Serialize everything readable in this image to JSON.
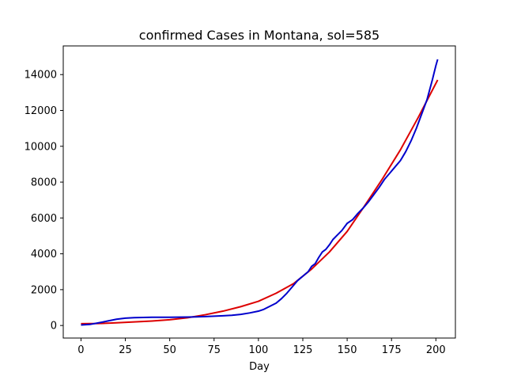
{
  "chart_data": {
    "type": "line",
    "title": "confirmed Cases in Montana, sol=585",
    "xlabel": "Day",
    "ylabel": "",
    "xlim": [
      -10,
      211
    ],
    "ylim": [
      -700,
      15600
    ],
    "x_ticks": [
      "0",
      "25",
      "50",
      "75",
      "100",
      "125",
      "150",
      "175",
      "200"
    ],
    "x_tick_values": [
      0,
      25,
      50,
      75,
      100,
      125,
      150,
      175,
      200
    ],
    "y_ticks": [
      "0",
      "2000",
      "4000",
      "6000",
      "8000",
      "10000",
      "12000",
      "14000"
    ],
    "y_tick_values": [
      0,
      2000,
      4000,
      6000,
      8000,
      10000,
      12000,
      14000
    ],
    "grid": false,
    "series": [
      {
        "color": "#0000cc",
        "points": [
          [
            0,
            30
          ],
          [
            5,
            60
          ],
          [
            10,
            150
          ],
          [
            15,
            250
          ],
          [
            20,
            350
          ],
          [
            25,
            410
          ],
          [
            30,
            440
          ],
          [
            35,
            450
          ],
          [
            40,
            460
          ],
          [
            45,
            460
          ],
          [
            50,
            460
          ],
          [
            55,
            465
          ],
          [
            60,
            470
          ],
          [
            65,
            480
          ],
          [
            70,
            500
          ],
          [
            75,
            520
          ],
          [
            80,
            540
          ],
          [
            85,
            570
          ],
          [
            90,
            620
          ],
          [
            95,
            700
          ],
          [
            100,
            800
          ],
          [
            103,
            900
          ],
          [
            106,
            1050
          ],
          [
            110,
            1250
          ],
          [
            113,
            1500
          ],
          [
            116,
            1800
          ],
          [
            119,
            2150
          ],
          [
            122,
            2500
          ],
          [
            125,
            2750
          ],
          [
            128,
            3000
          ],
          [
            130,
            3300
          ],
          [
            132,
            3450
          ],
          [
            134,
            3800
          ],
          [
            136,
            4100
          ],
          [
            138,
            4250
          ],
          [
            140,
            4500
          ],
          [
            142,
            4800
          ],
          [
            144,
            5000
          ],
          [
            147,
            5300
          ],
          [
            150,
            5700
          ],
          [
            153,
            5900
          ],
          [
            156,
            6250
          ],
          [
            159,
            6550
          ],
          [
            162,
            6900
          ],
          [
            165,
            7300
          ],
          [
            168,
            7700
          ],
          [
            171,
            8150
          ],
          [
            174,
            8500
          ],
          [
            177,
            8850
          ],
          [
            180,
            9200
          ],
          [
            183,
            9700
          ],
          [
            186,
            10300
          ],
          [
            189,
            11000
          ],
          [
            192,
            11800
          ],
          [
            195,
            12600
          ],
          [
            198,
            13700
          ],
          [
            200,
            14500
          ],
          [
            201,
            14850
          ]
        ]
      },
      {
        "color": "#dd0000",
        "points": [
          [
            0,
            100
          ],
          [
            10,
            110
          ],
          [
            20,
            150
          ],
          [
            30,
            200
          ],
          [
            40,
            250
          ],
          [
            50,
            320
          ],
          [
            60,
            430
          ],
          [
            70,
            600
          ],
          [
            80,
            800
          ],
          [
            90,
            1050
          ],
          [
            100,
            1350
          ],
          [
            110,
            1800
          ],
          [
            120,
            2350
          ],
          [
            130,
            3150
          ],
          [
            140,
            4100
          ],
          [
            150,
            5250
          ],
          [
            160,
            6700
          ],
          [
            170,
            8200
          ],
          [
            180,
            9800
          ],
          [
            190,
            11600
          ],
          [
            201,
            13700
          ]
        ]
      }
    ]
  }
}
